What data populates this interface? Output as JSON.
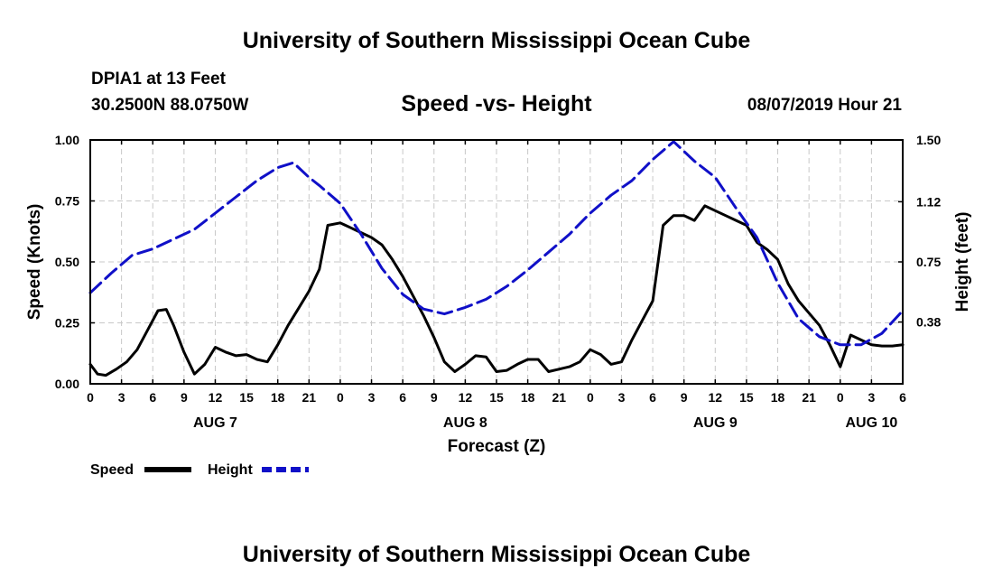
{
  "header": {
    "title": "University of Southern Mississippi Ocean Cube",
    "station": "DPIA1 at 13 Feet",
    "coords": "30.2500N 88.0750W",
    "subtitle": "Speed -vs- Height",
    "timestamp": "08/07/2019 Hour 21"
  },
  "footer": {
    "title": "University of Southern Mississippi Ocean Cube"
  },
  "colors": {
    "speed": "#000000",
    "height": "#1010c8",
    "grid": "#c8c8c8"
  },
  "chart_data": {
    "type": "line",
    "title": "Speed -vs- Height",
    "xlabel": "Forecast (Z)",
    "ylabel": "Speed (Knots)",
    "y2label": "Height (feet)",
    "xlim": [
      0,
      78
    ],
    "ylim": [
      0,
      1
    ],
    "y2lim": [
      0,
      1.5
    ],
    "x_ticks": [
      0,
      3,
      6,
      9,
      12,
      15,
      18,
      21,
      24,
      27,
      30,
      33,
      36,
      39,
      42,
      45,
      48,
      51,
      54,
      57,
      60,
      63,
      66,
      69,
      72,
      75,
      78
    ],
    "x_tick_labels": [
      "0",
      "3",
      "6",
      "9",
      "12",
      "15",
      "18",
      "21",
      "0",
      "3",
      "6",
      "9",
      "12",
      "15",
      "18",
      "21",
      "0",
      "3",
      "6",
      "9",
      "12",
      "15",
      "18",
      "21",
      "0",
      "3",
      "6"
    ],
    "date_labels": [
      {
        "x": 12,
        "label": "AUG 7"
      },
      {
        "x": 36,
        "label": "AUG 8"
      },
      {
        "x": 60,
        "label": "AUG 9"
      },
      {
        "x": 75,
        "label": "AUG 10"
      }
    ],
    "y_ticks": [
      0,
      0.25,
      0.5,
      0.75,
      1
    ],
    "y_tick_labels": [
      "0.00",
      "0.25",
      "0.50",
      "0.75",
      "1.00"
    ],
    "y2_ticks": [
      0.38,
      0.75,
      1.12,
      1.5
    ],
    "y2_tick_labels": [
      "0.38",
      "0.75",
      "1.12",
      "1.50"
    ],
    "grid": true,
    "legend": {
      "position": "bottom-left",
      "entries": [
        "Speed",
        "Height"
      ]
    },
    "series": [
      {
        "name": "Speed",
        "axis": "left",
        "style": "solid",
        "x": [
          0,
          0.7,
          1.5,
          2.5,
          3.5,
          4.5,
          5.5,
          6.5,
          7.3,
          8,
          9,
          10,
          11,
          12,
          13,
          14,
          15,
          16,
          17,
          18,
          19,
          20,
          21,
          22,
          22.8,
          24,
          25,
          26,
          27,
          28,
          29,
          30,
          31,
          32,
          33,
          34,
          35,
          36,
          37,
          38,
          39,
          40,
          41,
          42,
          43,
          44,
          45,
          46,
          47,
          48,
          49,
          50,
          51,
          52,
          53,
          54,
          55,
          56,
          57,
          58,
          59,
          60,
          61,
          62,
          63,
          64,
          65,
          66,
          67,
          68,
          69,
          70,
          71,
          72,
          73,
          74,
          75,
          76,
          77,
          78
        ],
        "values": [
          0.08,
          0.04,
          0.035,
          0.06,
          0.09,
          0.14,
          0.22,
          0.3,
          0.305,
          0.24,
          0.13,
          0.04,
          0.08,
          0.15,
          0.13,
          0.115,
          0.12,
          0.1,
          0.09,
          0.16,
          0.24,
          0.31,
          0.38,
          0.47,
          0.65,
          0.66,
          0.64,
          0.62,
          0.6,
          0.57,
          0.51,
          0.44,
          0.36,
          0.28,
          0.19,
          0.09,
          0.05,
          0.08,
          0.115,
          0.11,
          0.05,
          0.055,
          0.08,
          0.1,
          0.1,
          0.05,
          0.06,
          0.07,
          0.09,
          0.14,
          0.12,
          0.08,
          0.09,
          0.18,
          0.26,
          0.34,
          0.65,
          0.69,
          0.69,
          0.67,
          0.73,
          0.71,
          0.69,
          0.67,
          0.65,
          0.58,
          0.55,
          0.51,
          0.41,
          0.34,
          0.29,
          0.24,
          0.16,
          0.07,
          0.2,
          0.18,
          0.16,
          0.155,
          0.155,
          0.16
        ]
      },
      {
        "name": "Height",
        "axis": "right",
        "style": "dashed",
        "x": [
          0,
          2,
          4,
          6,
          8,
          10,
          12,
          14,
          16,
          18,
          19.5,
          21,
          22,
          24,
          26,
          28,
          30,
          32,
          34,
          36,
          38,
          40,
          42,
          44,
          46,
          48,
          50,
          52,
          54,
          56,
          58,
          60,
          62,
          64,
          66,
          68,
          70,
          72,
          74,
          76,
          78
        ],
        "values": [
          0.56,
          0.68,
          0.79,
          0.83,
          0.89,
          0.95,
          1.05,
          1.15,
          1.25,
          1.33,
          1.36,
          1.27,
          1.22,
          1.11,
          0.92,
          0.71,
          0.55,
          0.46,
          0.43,
          0.47,
          0.52,
          0.6,
          0.7,
          0.81,
          0.92,
          1.05,
          1.16,
          1.25,
          1.38,
          1.49,
          1.37,
          1.27,
          1.08,
          0.9,
          0.62,
          0.4,
          0.29,
          0.24,
          0.24,
          0.31,
          0.45
        ]
      }
    ]
  }
}
